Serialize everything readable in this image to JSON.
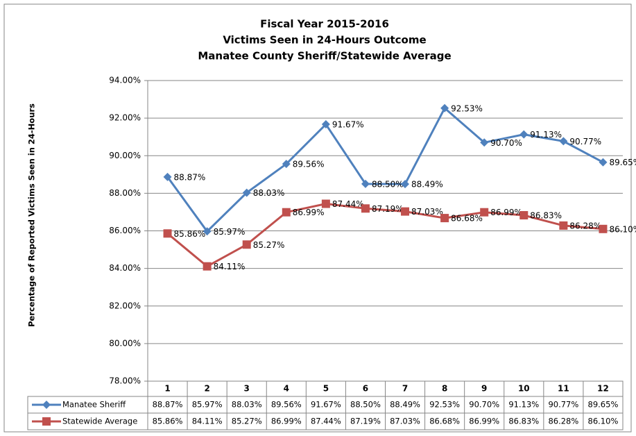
{
  "chart_data": {
    "type": "line",
    "title": [
      "Fiscal Year 2015-2016",
      "Victims Seen in 24-Hours Outcome",
      "Manatee County Sheriff/Statewide Average"
    ],
    "y_label": "Percentage of Reported Victims Seen in 24-Hours",
    "categories": [
      "1",
      "2",
      "3",
      "4",
      "5",
      "6",
      "7",
      "8",
      "9",
      "10",
      "11",
      "12"
    ],
    "series": [
      {
        "name": "Manatee Sheriff",
        "color": "#4f81bd",
        "marker": "diamond",
        "values": [
          88.87,
          85.97,
          88.03,
          89.56,
          91.67,
          88.5,
          88.49,
          92.53,
          90.7,
          91.13,
          90.77,
          89.65
        ],
        "value_labels": [
          "88.87%",
          "85.97%",
          "88.03%",
          "89.56%",
          "91.67%",
          "88.50%",
          "88.49%",
          "92.53%",
          "90.70%",
          "91.13%",
          "90.77%",
          "89.65%"
        ]
      },
      {
        "name": "Statewide Average",
        "color": "#c0504d",
        "marker": "square",
        "values": [
          85.86,
          84.11,
          85.27,
          86.99,
          87.44,
          87.19,
          87.03,
          86.68,
          86.99,
          86.83,
          86.28,
          86.1
        ],
        "value_labels": [
          "85.86%",
          "84.11%",
          "85.27%",
          "86.99%",
          "87.44%",
          "87.19%",
          "87.03%",
          "86.68%",
          "86.99%",
          "86.83%",
          "86.28%",
          "86.10%"
        ]
      }
    ],
    "ylim": [
      78,
      94
    ],
    "yticks": [
      {
        "value": 78,
        "label": "78.00%"
      },
      {
        "value": 80,
        "label": "80.00%"
      },
      {
        "value": 82,
        "label": "82.00%"
      },
      {
        "value": 84,
        "label": "84.00%"
      },
      {
        "value": 86,
        "label": "86.00%"
      },
      {
        "value": 88,
        "label": "88.00%"
      },
      {
        "value": 90,
        "label": "90.00%"
      },
      {
        "value": 92,
        "label": "92.00%"
      },
      {
        "value": 94,
        "label": "94.00%"
      }
    ],
    "grid": true
  }
}
